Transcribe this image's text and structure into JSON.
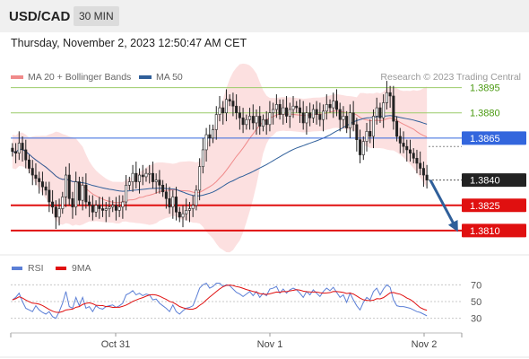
{
  "header": {
    "symbol": "USD/CAD",
    "timeframe": "30 MIN"
  },
  "datetime": "Thursday, November 2, 2023 12:50:47 AM CET",
  "legend": {
    "ma20_label": "MA 20 + Bollinger Bands",
    "ma50_label": "MA 50",
    "credit": "Research © 2023 Trading Central",
    "colors": {
      "ma20": "#f08a8a",
      "ma50": "#2f5f9a",
      "band": "#fcdada"
    }
  },
  "rsi_legend": {
    "rsi_label": "RSI",
    "ma_label": "9MA",
    "colors": {
      "rsi": "#5b7fd6",
      "ma": "#e01010"
    }
  },
  "chart_data": [
    {
      "type": "candlestick",
      "title": "USD/CAD",
      "price_axis_ylim": [
        1.3803,
        1.3914
      ],
      "x_tick_labels": [
        "Oct 31",
        "Nov 1",
        "Nov 2"
      ],
      "levels": [
        {
          "value": 1.3895,
          "label": "1.3895",
          "role": "resistance",
          "color": "#9ccc6a",
          "text_color": "#4a9a10"
        },
        {
          "value": 1.388,
          "label": "1.3880",
          "role": "resistance",
          "color": "#9ccc6a",
          "text_color": "#4a9a10"
        },
        {
          "value": 1.3865,
          "label": "1.3865",
          "role": "pivot",
          "color": "#3366dd",
          "text_color": "#ffffff"
        },
        {
          "value": 1.384,
          "label": "1.3840",
          "role": "last",
          "color": "#222222",
          "text_color": "#ffffff"
        },
        {
          "value": 1.3825,
          "label": "1.3825",
          "role": "support",
          "color": "#e01010",
          "text_color": "#ffffff"
        },
        {
          "value": 1.381,
          "label": "1.3810",
          "role": "support",
          "color": "#e01010",
          "text_color": "#ffffff"
        }
      ],
      "closes": [
        1.3857,
        1.3856,
        1.3862,
        1.3858,
        1.3852,
        1.3847,
        1.3843,
        1.3841,
        1.3839,
        1.3836,
        1.3834,
        1.3827,
        1.3824,
        1.3818,
        1.3823,
        1.383,
        1.3843,
        1.3829,
        1.3824,
        1.3839,
        1.3828,
        1.3837,
        1.3827,
        1.3825,
        1.3821,
        1.3825,
        1.3823,
        1.3822,
        1.3823,
        1.3824,
        1.3825,
        1.3822,
        1.3824,
        1.3827,
        1.3837,
        1.3839,
        1.3844,
        1.3839,
        1.3843,
        1.3842,
        1.3844,
        1.3844,
        1.3839,
        1.384,
        1.3837,
        1.3833,
        1.3829,
        1.3824,
        1.383,
        1.3821,
        1.3818,
        1.382,
        1.3822,
        1.3823,
        1.3825,
        1.3834,
        1.3848,
        1.3858,
        1.3867,
        1.3865,
        1.387,
        1.3879,
        1.3883,
        1.388,
        1.3888,
        1.3887,
        1.3884,
        1.388,
        1.3877,
        1.3873,
        1.3876,
        1.3878,
        1.3874,
        1.3878,
        1.3872,
        1.3876,
        1.3873,
        1.388,
        1.3882,
        1.3885,
        1.3879,
        1.3883,
        1.3878,
        1.3882,
        1.3884,
        1.3883,
        1.388,
        1.3874,
        1.388,
        1.3877,
        1.3882,
        1.3879,
        1.3876,
        1.3881,
        1.3885,
        1.3883,
        1.3887,
        1.3882,
        1.3876,
        1.3878,
        1.3871,
        1.388,
        1.3873,
        1.3864,
        1.3855,
        1.3863,
        1.3869,
        1.3866,
        1.3878,
        1.3883,
        1.3877,
        1.3886,
        1.3892,
        1.389,
        1.3875,
        1.3866,
        1.3862,
        1.386,
        1.3858,
        1.3856,
        1.3853,
        1.385,
        1.3847,
        1.3843,
        1.384
      ],
      "rsi": {
        "ylim": [
          20,
          80
        ],
        "ticks": [
          70,
          50,
          30
        ],
        "values": [
          52,
          55,
          60,
          50,
          42,
          40,
          38,
          45,
          40,
          37,
          35,
          38,
          32,
          30,
          38,
          48,
          62,
          44,
          42,
          55,
          45,
          55,
          42,
          44,
          38,
          45,
          42,
          41,
          44,
          45,
          46,
          43,
          45,
          48,
          58,
          60,
          63,
          58,
          60,
          57,
          59,
          58,
          52,
          53,
          48,
          45,
          42,
          38,
          46,
          38,
          35,
          39,
          42,
          43,
          45,
          55,
          66,
          70,
          72,
          66,
          68,
          72,
          72,
          68,
          70,
          69,
          65,
          61,
          59,
          56,
          59,
          62,
          57,
          62,
          55,
          60,
          57,
          65,
          66,
          68,
          60,
          65,
          60,
          64,
          66,
          64,
          60,
          55,
          62,
          58,
          64,
          60,
          56,
          62,
          66,
          63,
          67,
          61,
          55,
          58,
          49,
          60,
          52,
          45,
          40,
          49,
          55,
          52,
          62,
          66,
          58,
          65,
          70,
          67,
          52,
          45,
          44,
          44,
          43,
          42,
          40,
          38,
          37,
          35,
          33
        ]
      }
    }
  ]
}
